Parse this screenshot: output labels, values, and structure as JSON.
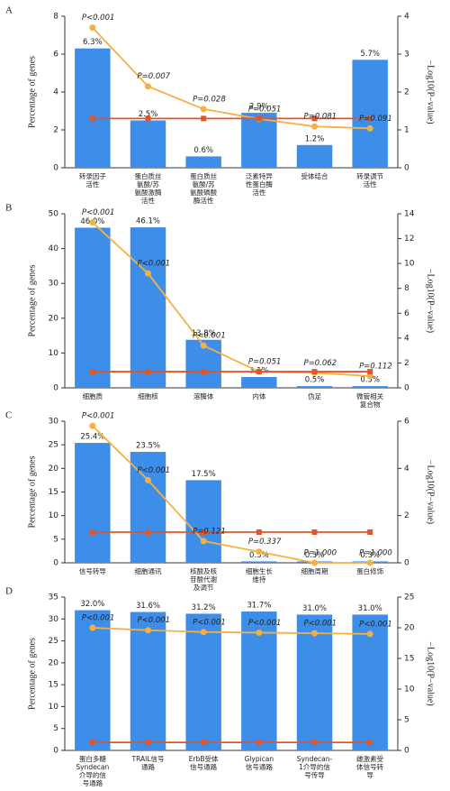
{
  "chart_data": [
    {
      "type": "bar",
      "panel": "A",
      "ylabel": "Percentage of genes",
      "y2label": "−Log10(P−value)",
      "categories": [
        [
          "转录因子",
          "活性"
        ],
        [
          "蛋白质丝",
          "氨酸/苏",
          "氨酸激酶",
          "活性"
        ],
        [
          "蛋白质丝",
          "氨酸/苏",
          "氨酸磷酸",
          "酶活性"
        ],
        [
          "泛素特异",
          "性蛋白酶",
          "活性"
        ],
        [
          "受体结合"
        ],
        [
          "转录调节",
          "活性"
        ]
      ],
      "ylim": [
        0,
        8
      ],
      "yticks": [
        0,
        2,
        4,
        6,
        8
      ],
      "y2lim": [
        0,
        4
      ],
      "y2ticks": [
        0,
        1,
        2,
        3,
        4
      ],
      "series": [
        {
          "color": "#3d8ee8",
          "values": [
            6.3,
            2.5,
            0.6,
            2.9,
            1.2,
            5.7
          ],
          "value_labels": [
            "6.3%",
            "2.5%",
            "0.6%",
            "2.9%",
            "1.2%",
            "5.7%"
          ]
        },
        {
          "axis": "y2",
          "color": "#f5b041",
          "marker": "circle",
          "values": [
            3.7,
            2.15,
            1.55,
            1.29,
            1.09,
            1.04
          ]
        },
        {
          "axis": "y2",
          "color": "#e0562b",
          "marker": "square",
          "values": [
            1.3,
            1.3,
            1.3,
            1.3,
            1.3,
            1.3
          ]
        }
      ],
      "annotations": [
        "P<0.001",
        "P=0.007",
        "P=0.028",
        "P=0.051",
        "P=0.081",
        "P=0.091"
      ]
    },
    {
      "type": "bar",
      "panel": "B",
      "ylabel": "Percentage of genes",
      "y2label": "−Log10(P−value)",
      "categories": [
        [
          "细胞质"
        ],
        [
          "细胞核"
        ],
        [
          "溶酶体"
        ],
        [
          "内体"
        ],
        [
          "伪足"
        ],
        [
          "微管相关",
          "复合物"
        ]
      ],
      "ylim": [
        0,
        50
      ],
      "yticks": [
        0,
        10,
        20,
        30,
        40,
        50
      ],
      "y2lim": [
        0,
        14
      ],
      "y2ticks": [
        0,
        2,
        4,
        6,
        8,
        10,
        12,
        14
      ],
      "series": [
        {
          "color": "#3d8ee8",
          "values": [
            46.0,
            46.1,
            13.8,
            3.1,
            0.5,
            0.5
          ],
          "value_labels": [
            "46.0%",
            "46.1%",
            "13.8%",
            "3.1%",
            "0.5%",
            "0.5%"
          ]
        },
        {
          "axis": "y2",
          "color": "#f5b041",
          "marker": "circle",
          "values": [
            13.3,
            9.2,
            3.4,
            1.3,
            1.2,
            0.95
          ]
        },
        {
          "axis": "y2",
          "color": "#e0562b",
          "marker": "square",
          "values": [
            1.3,
            1.3,
            1.3,
            1.3,
            1.3,
            1.3
          ]
        }
      ],
      "annotations": [
        "P<0.001",
        "P<0.001",
        "P<0.001",
        "P=0.051",
        "P=0.062",
        "P=0.112"
      ]
    },
    {
      "type": "bar",
      "panel": "C",
      "ylabel": "Percentage of genes",
      "y2label": "−Log10(P−value)",
      "categories": [
        [
          "信号转导"
        ],
        [
          "细胞通讯"
        ],
        [
          "核酸及核",
          "苷酸代谢",
          "及调节"
        ],
        [
          "细胞生长",
          "维持"
        ],
        [
          "细胞周期"
        ],
        [
          "蛋白修饰"
        ]
      ],
      "ylim": [
        0,
        30
      ],
      "yticks": [
        0,
        5,
        10,
        15,
        20,
        25,
        30
      ],
      "y2lim": [
        0,
        6
      ],
      "y2ticks": [
        0,
        2,
        4,
        6
      ],
      "series": [
        {
          "color": "#3d8ee8",
          "values": [
            25.4,
            23.5,
            17.5,
            0.3,
            0.3,
            0.3
          ],
          "value_labels": [
            "25.4%",
            "23.5%",
            "17.5%",
            "0.3%",
            "0.3%",
            "0.3%"
          ]
        },
        {
          "axis": "y2",
          "color": "#f5b041",
          "marker": "circle",
          "values": [
            5.8,
            3.5,
            0.92,
            0.47,
            0,
            0
          ]
        },
        {
          "axis": "y2",
          "color": "#e0562b",
          "marker": "square",
          "values": [
            1.3,
            1.3,
            1.3,
            1.3,
            1.3,
            1.3
          ]
        }
      ],
      "annotations": [
        "P<0.001",
        "P<0.001",
        "P=0.121",
        "P=0.337",
        "P=1.000",
        "P=1.000"
      ]
    },
    {
      "type": "bar",
      "panel": "D",
      "ylabel": "Percentage of genes",
      "y2label": "−Log10(P−value)",
      "categories": [
        [
          "蛋白多糖",
          "Syndecan",
          "介导的信",
          "号通路"
        ],
        [
          "TRAIL信号",
          "通路"
        ],
        [
          "ErbB受体",
          "信号通路"
        ],
        [
          "Glypican",
          "信号通路"
        ],
        [
          "Syndecan-",
          "1介导的信",
          "号传导"
        ],
        [
          "雌激素受",
          "体信号转",
          "导"
        ]
      ],
      "ylim": [
        0,
        35
      ],
      "yticks": [
        0,
        5,
        10,
        15,
        20,
        25,
        30,
        35
      ],
      "y2lim": [
        0,
        25
      ],
      "y2ticks": [
        0,
        5,
        10,
        15,
        20,
        25
      ],
      "series": [
        {
          "color": "#3d8ee8",
          "values": [
            32.0,
            31.6,
            31.2,
            31.7,
            31.0,
            31.0
          ],
          "value_labels": [
            "32.0%",
            "31.6%",
            "31.2%",
            "31.7%",
            "31.0%",
            "31.0%"
          ]
        },
        {
          "axis": "y2",
          "color": "#f5b041",
          "marker": "circle",
          "values": [
            20.0,
            19.6,
            19.3,
            19.2,
            19.1,
            19.0
          ]
        },
        {
          "axis": "y2",
          "color": "#e0562b",
          "marker": "square",
          "values": [
            1.3,
            1.3,
            1.3,
            1.3,
            1.3,
            1.3
          ]
        }
      ],
      "annotations": [
        "P<0.001",
        "P<0.001",
        "P<0.001",
        "P<0.001",
        "P<0.001",
        "P<0.001"
      ]
    }
  ]
}
